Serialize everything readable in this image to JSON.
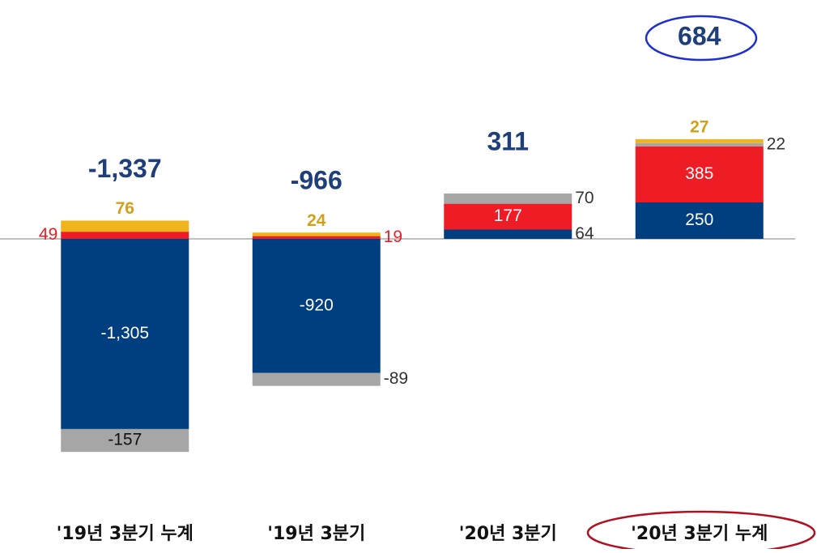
{
  "chart_data": {
    "type": "bar",
    "stacked": true,
    "categories": [
      "'19년 3분기 누계",
      "'19년 3분기",
      "'20년 3분기",
      "'20년 3분기 누계"
    ],
    "series": [
      {
        "color": "#003f7f",
        "values": [
          -1305,
          -920,
          64,
          250
        ],
        "value_labels": [
          "-1,305",
          "-920",
          "64",
          "250"
        ]
      },
      {
        "color": "#ee1c25",
        "values": [
          49,
          19,
          177,
          385
        ],
        "value_labels": [
          "49",
          "19",
          "177",
          "385"
        ]
      },
      {
        "color": "#a6a6a6",
        "values": [
          -157,
          -89,
          70,
          22
        ],
        "value_labels": [
          "-157",
          "-89",
          "70",
          "22"
        ]
      },
      {
        "color": "#f0b41c",
        "values": [
          76,
          24,
          null,
          27
        ],
        "value_labels": [
          "76",
          "24",
          null,
          "27"
        ]
      }
    ],
    "totals": [
      -1337,
      -966,
      311,
      684
    ],
    "total_labels": [
      "-1,337",
      "-966",
      "311",
      "684"
    ],
    "ylim": [
      -1500,
      750
    ]
  }
}
